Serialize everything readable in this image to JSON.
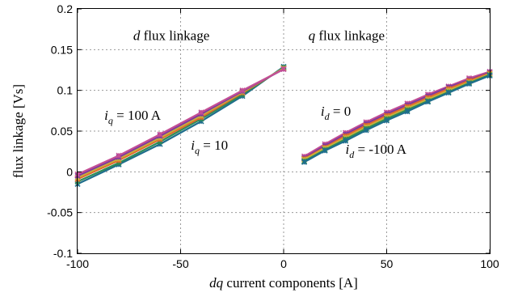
{
  "chart_data": {
    "type": "line",
    "title": "",
    "xlabel": {
      "italic": "dq",
      "rest": " current components [A]"
    },
    "ylabel": "flux linkage [Vs]",
    "xlim": [
      -100,
      100
    ],
    "ylim": [
      -0.1,
      0.2
    ],
    "x_ticks": [
      -100,
      -50,
      0,
      50,
      100
    ],
    "x_tick_labels": [
      "-100",
      "-50",
      "0",
      "50",
      "100"
    ],
    "y_ticks": [
      -0.1,
      -0.05,
      0,
      0.05,
      0.1,
      0.15,
      0.2
    ],
    "y_tick_labels": [
      "-0.1",
      "-0.05",
      "0",
      "0.05",
      "0.1",
      "0.15",
      "0.2"
    ],
    "grid": true,
    "annotations": [
      {
        "id": "d-title",
        "italic": "d",
        "rest": " flux linkage",
        "x": -73,
        "y": 0.162
      },
      {
        "id": "q-title",
        "italic": "q",
        "rest": " flux linkage",
        "x": 12,
        "y": 0.162
      },
      {
        "id": "iq-100",
        "italic": "i",
        "sub": "q",
        "rest": " = 100 A",
        "x": -87,
        "y": 0.064
      },
      {
        "id": "iq-10",
        "italic": "i",
        "sub": "q",
        "rest": " = 10",
        "x": -45,
        "y": 0.027
      },
      {
        "id": "id-0",
        "italic": "i",
        "sub": "d",
        "rest": " = 0",
        "x": 18,
        "y": 0.069
      },
      {
        "id": "id-100",
        "italic": "i",
        "sub": "d",
        "rest": " = -100 A",
        "x": 30,
        "y": 0.022
      }
    ],
    "d_axis": {
      "x": [
        -100,
        -80,
        -60,
        -40,
        -20,
        0
      ],
      "series": [
        {
          "color": "#1f6e8c",
          "values": [
            -0.015,
            0.009,
            0.034,
            0.062,
            0.093,
            0.129
          ]
        },
        {
          "color": "#2e8b57",
          "values": [
            -0.012,
            0.011,
            0.037,
            0.065,
            0.095,
            0.128
          ]
        },
        {
          "color": "#e06a2b",
          "values": [
            -0.009,
            0.014,
            0.04,
            0.067,
            0.097,
            0.127
          ]
        },
        {
          "color": "#c9b03a",
          "values": [
            -0.007,
            0.016,
            0.042,
            0.069,
            0.098,
            0.127
          ]
        },
        {
          "color": "#7e3a9e",
          "values": [
            -0.005,
            0.018,
            0.044,
            0.071,
            0.099,
            0.126
          ]
        },
        {
          "color": "#c44f95",
          "values": [
            -0.003,
            0.02,
            0.046,
            0.073,
            0.1,
            0.126
          ]
        }
      ]
    },
    "q_axis": {
      "x": [
        10,
        20,
        30,
        40,
        50,
        60,
        70,
        80,
        90,
        100
      ],
      "series": [
        {
          "color": "#c44f95",
          "values": [
            0.019,
            0.034,
            0.048,
            0.061,
            0.073,
            0.084,
            0.095,
            0.105,
            0.115,
            0.123
          ]
        },
        {
          "color": "#7e3a9e",
          "values": [
            0.017,
            0.032,
            0.046,
            0.059,
            0.071,
            0.082,
            0.093,
            0.104,
            0.113,
            0.122
          ]
        },
        {
          "color": "#e06a2b",
          "values": [
            0.016,
            0.03,
            0.044,
            0.057,
            0.069,
            0.08,
            0.091,
            0.102,
            0.112,
            0.121
          ]
        },
        {
          "color": "#c9b03a",
          "values": [
            0.015,
            0.029,
            0.042,
            0.055,
            0.067,
            0.078,
            0.089,
            0.1,
            0.11,
            0.12
          ]
        },
        {
          "color": "#2e8b57",
          "values": [
            0.013,
            0.027,
            0.04,
            0.053,
            0.065,
            0.076,
            0.087,
            0.098,
            0.109,
            0.119
          ]
        },
        {
          "color": "#1f6e8c",
          "values": [
            0.012,
            0.026,
            0.038,
            0.051,
            0.063,
            0.074,
            0.086,
            0.097,
            0.108,
            0.118
          ]
        }
      ]
    }
  }
}
